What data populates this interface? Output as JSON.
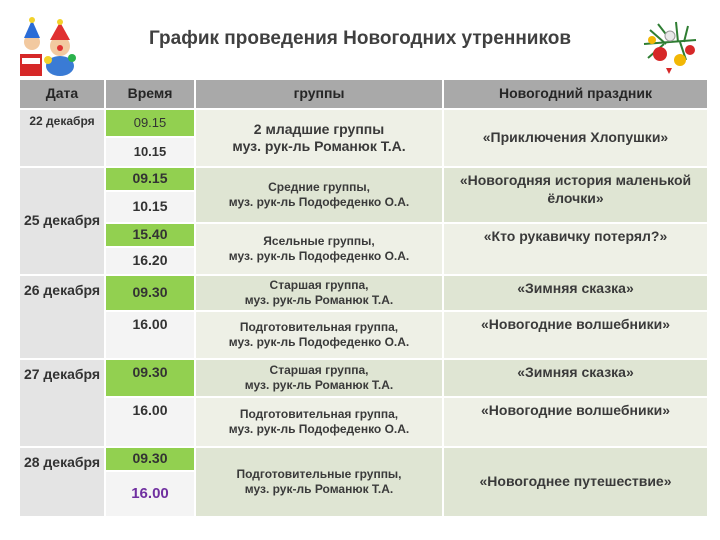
{
  "title": "График проведения Новогодних утренников",
  "decor_left_icon": "circus-clowns-icon",
  "decor_right_icon": "christmas-tree-branch-icon",
  "headers": {
    "date": "Дата",
    "time": "Время",
    "groups": "группы",
    "holiday": "Новогодний праздник"
  },
  "rows": [
    {
      "date": "22 декабря",
      "times": [
        "09.15",
        "10.15"
      ],
      "group_line1": "2 младшие группы",
      "group_line2": "муз. рук-ль Романюк Т.А.",
      "holiday": "«Приключения Хлопушки»"
    },
    {
      "date": "25 декабря",
      "times": [
        "09.15",
        "10.15"
      ],
      "group_line1": "Средние группы,",
      "group_line2": "муз. рук-ль Подофеденко О.А.",
      "holiday": "«Новогодняя история маленькой ёлочки»"
    },
    {
      "times": [
        "15.40",
        "16.20"
      ],
      "group_line1": "Ясельные группы,",
      "group_line2": "муз. рук-ль Подофеденко О.А.",
      "holiday": "«Кто рукавичку потерял?»"
    },
    {
      "date": "26 декабря",
      "times": [
        "09.30"
      ],
      "group_line1": "Старшая группа,",
      "group_line2": "муз. рук-ль Романюк Т.А.",
      "holiday": "«Зимняя сказка»"
    },
    {
      "times": [
        "16.00"
      ],
      "group_line1": "Подготовительная группа,",
      "group_line2": "муз. рук-ль Подофеденко О.А.",
      "holiday": "«Новогодние волшебники»"
    },
    {
      "date": "27 декабря",
      "times": [
        "09.30"
      ],
      "group_line1": "Старшая группа,",
      "group_line2": "муз. рук-ль Романюк Т.А.",
      "holiday": "«Зимняя сказка»"
    },
    {
      "times": [
        "16.00"
      ],
      "group_line1": "Подготовительная группа,",
      "group_line2": "муз. рук-ль Подофеденко О.А.",
      "holiday": "«Новогодние волшебники»"
    },
    {
      "date": "28 декабря",
      "times": [
        "09.30",
        "16.00"
      ],
      "group_line1": "Подготовительные группы,",
      "group_line2": "муз. рук-ль Романюк Т.А.",
      "holiday": "«Новогоднее путешествие»"
    }
  ],
  "colors": {
    "header_bg": "#a9a9a9",
    "date_bg": "#e4e4e4",
    "time_green": "#92d050",
    "time_light": "#f4f4f4",
    "row_bg": "#eef0e6",
    "row_bg_alt": "#dfe5d3",
    "accent_purple": "#7030a0"
  }
}
